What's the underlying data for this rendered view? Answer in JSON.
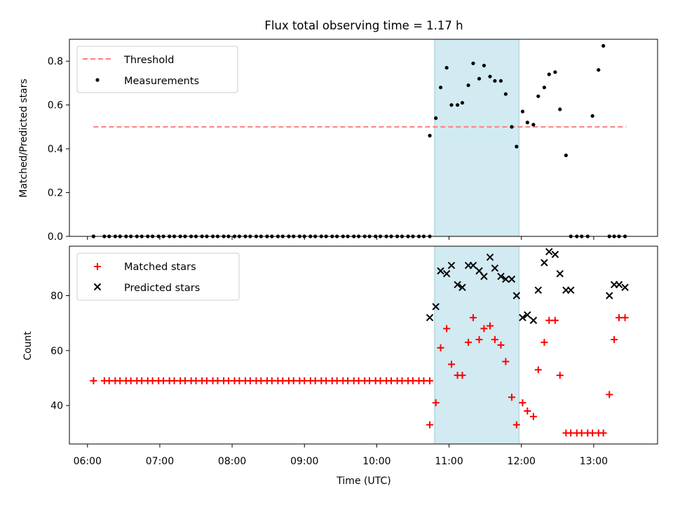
{
  "title": "Flux total observing time = 1.17 h",
  "colors": {
    "threshold": "#ff7f7f",
    "measure": "#000000",
    "matched": "#ff0000",
    "predicted": "#000000",
    "span": "#add8e6"
  },
  "chart_data": [
    {
      "type": "scatter",
      "ylabel": "Matched/Predicted stars",
      "ylim": [
        0,
        0.9
      ],
      "yticks": [
        "0.0",
        "0.2",
        "0.4",
        "0.6",
        "0.8"
      ],
      "ytick_values": [
        0,
        0.2,
        0.4,
        0.6,
        0.8
      ],
      "xlim": [
        "05:45",
        "13:53"
      ],
      "highlight_span": [
        "10:48",
        "11:58"
      ],
      "legend": {
        "placement": "upper-left",
        "entries": [
          "Threshold",
          "Measurements"
        ]
      },
      "threshold": {
        "name": "Threshold",
        "value": 0.5,
        "x": [
          "06:05",
          "13:27"
        ]
      },
      "series": [
        {
          "name": "Measurements",
          "x": [
            "06:05",
            "06:14",
            "06:18",
            "06:23",
            "06:27",
            "06:32",
            "06:36",
            "06:41",
            "06:45",
            "06:50",
            "06:54",
            "06:59",
            "07:03",
            "07:08",
            "07:12",
            "07:17",
            "07:21",
            "07:26",
            "07:30",
            "07:35",
            "07:39",
            "07:44",
            "07:48",
            "07:53",
            "07:57",
            "08:02",
            "08:06",
            "08:11",
            "08:15",
            "08:20",
            "08:24",
            "08:29",
            "08:33",
            "08:38",
            "08:42",
            "08:47",
            "08:51",
            "08:56",
            "09:00",
            "09:05",
            "09:09",
            "09:14",
            "09:18",
            "09:23",
            "09:27",
            "09:32",
            "09:36",
            "09:41",
            "09:45",
            "09:50",
            "09:54",
            "09:59",
            "10:03",
            "10:08",
            "10:12",
            "10:17",
            "10:21",
            "10:26",
            "10:30",
            "10:35",
            "10:39",
            "10:44",
            "10:44",
            "10:49",
            "10:53",
            "10:58",
            "11:02",
            "11:07",
            "11:11",
            "11:16",
            "11:20",
            "11:25",
            "11:29",
            "11:34",
            "11:38",
            "11:43",
            "11:47",
            "11:52",
            "11:56",
            "12:01",
            "12:05",
            "12:10",
            "12:14",
            "12:19",
            "12:23",
            "12:28",
            "12:32",
            "12:37",
            "12:41",
            "12:46",
            "12:50",
            "12:55",
            "12:59",
            "13:04",
            "13:08",
            "13:13",
            "13:17",
            "13:21",
            "13:26"
          ],
          "y": [
            0,
            0,
            0,
            0,
            0,
            0,
            0,
            0,
            0,
            0,
            0,
            0,
            0,
            0,
            0,
            0,
            0,
            0,
            0,
            0,
            0,
            0,
            0,
            0,
            0,
            0,
            0,
            0,
            0,
            0,
            0,
            0,
            0,
            0,
            0,
            0,
            0,
            0,
            0,
            0,
            0,
            0,
            0,
            0,
            0,
            0,
            0,
            0,
            0,
            0,
            0,
            0,
            0,
            0,
            0,
            0,
            0,
            0,
            0,
            0,
            0,
            0,
            0.46,
            0.54,
            0.68,
            0.77,
            0.6,
            0.6,
            0.61,
            0.69,
            0.79,
            0.72,
            0.78,
            0.73,
            0.71,
            0.71,
            0.65,
            0.5,
            0.41,
            0.57,
            0.52,
            0.51,
            0.64,
            0.68,
            0.74,
            0.75,
            0.58,
            0.37,
            0,
            0,
            0,
            0,
            0.55,
            0.76,
            0.87,
            0,
            0,
            0,
            0
          ]
        }
      ]
    },
    {
      "type": "scatter",
      "xlabel": "Time (UTC)",
      "ylabel": "Count",
      "ylim": [
        26,
        98
      ],
      "yticks": [
        "40",
        "60",
        "80"
      ],
      "ytick_values": [
        40,
        60,
        80
      ],
      "xticks": [
        "06:00",
        "07:00",
        "08:00",
        "09:00",
        "10:00",
        "11:00",
        "12:00",
        "13:00"
      ],
      "xlim": [
        "05:45",
        "13:53"
      ],
      "highlight_span": [
        "10:48",
        "11:58"
      ],
      "legend": {
        "placement": "upper-left",
        "entries": [
          "Matched stars",
          "Predicted stars"
        ]
      },
      "series": [
        {
          "name": "Matched stars",
          "x": [
            "06:05",
            "06:14",
            "06:18",
            "06:23",
            "06:27",
            "06:32",
            "06:36",
            "06:41",
            "06:45",
            "06:50",
            "06:54",
            "06:59",
            "07:03",
            "07:08",
            "07:12",
            "07:17",
            "07:21",
            "07:26",
            "07:30",
            "07:35",
            "07:39",
            "07:44",
            "07:48",
            "07:53",
            "07:57",
            "08:02",
            "08:06",
            "08:11",
            "08:15",
            "08:20",
            "08:24",
            "08:29",
            "08:33",
            "08:38",
            "08:42",
            "08:47",
            "08:51",
            "08:56",
            "09:00",
            "09:05",
            "09:09",
            "09:14",
            "09:18",
            "09:23",
            "09:27",
            "09:32",
            "09:36",
            "09:41",
            "09:45",
            "09:50",
            "09:54",
            "09:59",
            "10:03",
            "10:08",
            "10:12",
            "10:17",
            "10:21",
            "10:26",
            "10:30",
            "10:35",
            "10:39",
            "10:44",
            "10:44",
            "10:49",
            "10:53",
            "10:58",
            "11:02",
            "11:07",
            "11:11",
            "11:16",
            "11:20",
            "11:25",
            "11:29",
            "11:34",
            "11:38",
            "11:43",
            "11:47",
            "11:52",
            "11:56",
            "12:01",
            "12:05",
            "12:10",
            "12:14",
            "12:19",
            "12:23",
            "12:28",
            "12:32",
            "12:37",
            "12:41",
            "12:46",
            "12:50",
            "12:55",
            "12:59",
            "13:04",
            "13:08",
            "13:13",
            "13:17",
            "13:21",
            "13:26"
          ],
          "y": [
            49,
            49,
            49,
            49,
            49,
            49,
            49,
            49,
            49,
            49,
            49,
            49,
            49,
            49,
            49,
            49,
            49,
            49,
            49,
            49,
            49,
            49,
            49,
            49,
            49,
            49,
            49,
            49,
            49,
            49,
            49,
            49,
            49,
            49,
            49,
            49,
            49,
            49,
            49,
            49,
            49,
            49,
            49,
            49,
            49,
            49,
            49,
            49,
            49,
            49,
            49,
            49,
            49,
            49,
            49,
            49,
            49,
            49,
            49,
            49,
            49,
            49,
            33,
            41,
            61,
            68,
            55,
            51,
            51,
            63,
            72,
            64,
            68,
            69,
            64,
            62,
            56,
            43,
            33,
            41,
            38,
            36,
            53,
            63,
            71,
            71,
            51,
            30,
            30,
            30,
            30,
            30,
            30,
            30,
            30,
            44,
            64,
            72,
            72
          ]
        },
        {
          "name": "Predicted stars",
          "x": [
            "10:44",
            "10:49",
            "10:53",
            "10:58",
            "11:02",
            "11:07",
            "11:11",
            "11:16",
            "11:20",
            "11:25",
            "11:29",
            "11:34",
            "11:38",
            "11:43",
            "11:47",
            "11:52",
            "11:56",
            "12:01",
            "12:05",
            "12:10",
            "12:14",
            "12:19",
            "12:23",
            "12:28",
            "12:32",
            "12:37",
            "12:41",
            "13:13",
            "13:17",
            "13:21",
            "13:26"
          ],
          "y": [
            72,
            76,
            89,
            88,
            91,
            84,
            83,
            91,
            91,
            89,
            87,
            94,
            90,
            87,
            86,
            86,
            80,
            72,
            73,
            71,
            82,
            92,
            96,
            95,
            88,
            82,
            82,
            80,
            84,
            84,
            83
          ]
        }
      ]
    }
  ]
}
